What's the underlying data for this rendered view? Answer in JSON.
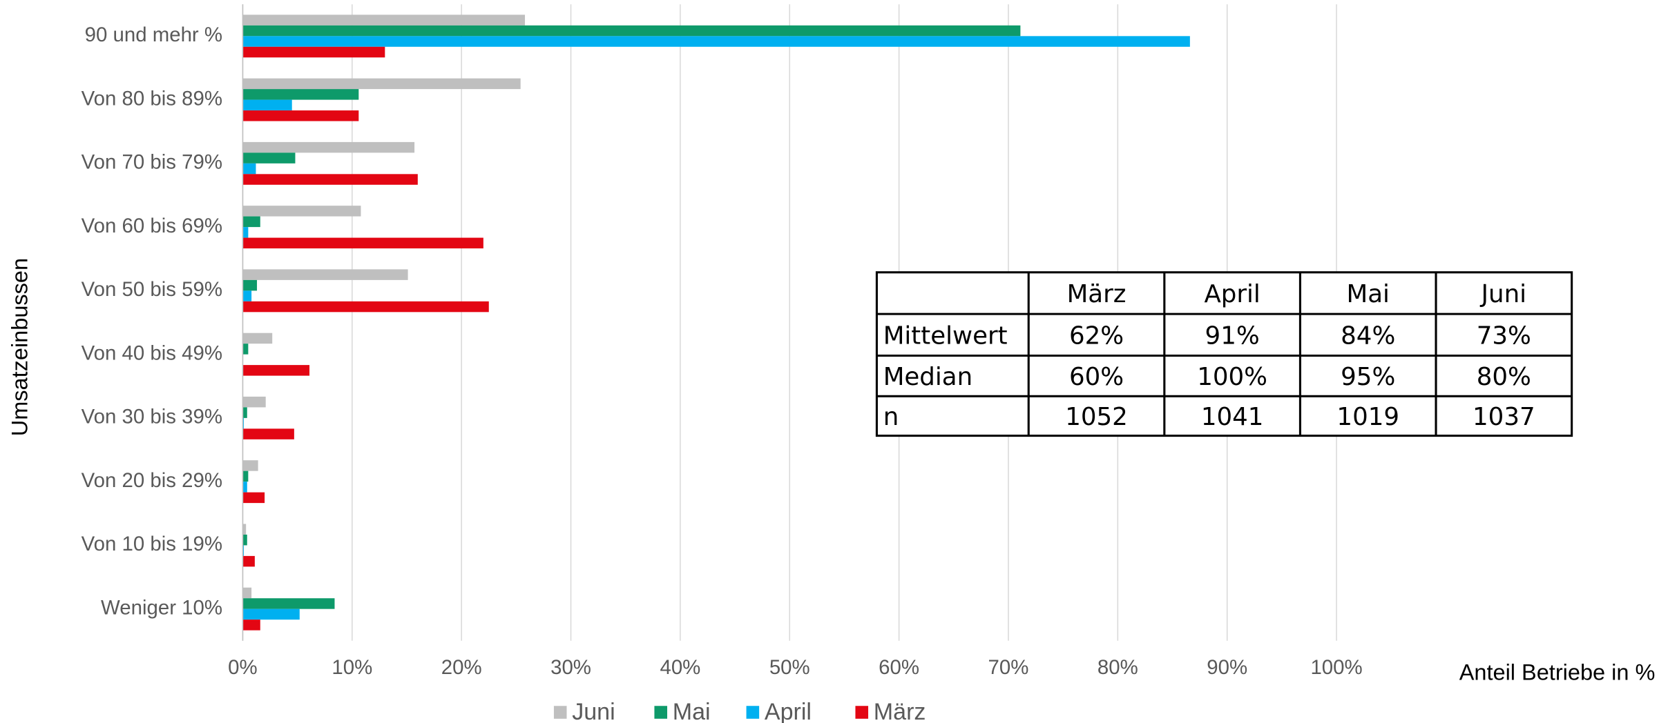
{
  "chart_data": {
    "type": "hbar",
    "y_label": "Umsatzeinbussen",
    "x_label": "Anteil Betriebe in %",
    "categories": [
      "90 und mehr %",
      "Von 80 bis 89%",
      "Von 70 bis 79%",
      "Von 60 bis 69%",
      "Von 50 bis 59%",
      "Von 40 bis 49%",
      "Von 30 bis 39%",
      "Von 20 bis 29%",
      "Von 10 bis 19%",
      "Weniger 10%"
    ],
    "series": [
      {
        "name": "Juni",
        "color": "#bfbfbf",
        "values": [
          25.8,
          25.4,
          15.7,
          10.8,
          15.1,
          2.7,
          2.1,
          1.4,
          0.3,
          0.8
        ]
      },
      {
        "name": "Mai",
        "color": "#0e9a6a",
        "values": [
          71.1,
          10.6,
          4.8,
          1.6,
          1.3,
          0.5,
          0.4,
          0.5,
          0.4,
          8.4
        ]
      },
      {
        "name": "April",
        "color": "#00b0f0",
        "values": [
          86.6,
          4.5,
          1.2,
          0.5,
          0.8,
          0,
          0.1,
          0.4,
          0.1,
          5.2
        ]
      },
      {
        "name": "März",
        "color": "#e30613",
        "values": [
          13,
          10.6,
          16,
          22,
          22.5,
          6.1,
          4.7,
          2,
          1.1,
          1.6
        ]
      }
    ],
    "xlim": [
      0,
      100
    ],
    "xticks": [
      {
        "value": 0,
        "label": "0%"
      },
      {
        "value": 10,
        "label": "10%"
      },
      {
        "value": 20,
        "label": "20%"
      },
      {
        "value": 30,
        "label": "30%"
      },
      {
        "value": 40,
        "label": "40%"
      },
      {
        "value": 50,
        "label": "50%"
      },
      {
        "value": 60,
        "label": "60%"
      },
      {
        "value": 70,
        "label": "70%"
      },
      {
        "value": 80,
        "label": "80%"
      },
      {
        "value": 90,
        "label": "90%"
      },
      {
        "value": 100,
        "label": "100%"
      }
    ],
    "grid": true,
    "legend": "bottom"
  },
  "table": {
    "columns": [
      "März",
      "April",
      "Mai",
      "Juni"
    ],
    "rows": [
      [
        "Mittelwert",
        "62%",
        "91%",
        "84%",
        "73%"
      ],
      [
        "Median",
        "60%",
        "100%",
        "95%",
        "80%"
      ],
      [
        "n",
        "1052",
        "1041",
        "1019",
        "1037"
      ]
    ]
  }
}
